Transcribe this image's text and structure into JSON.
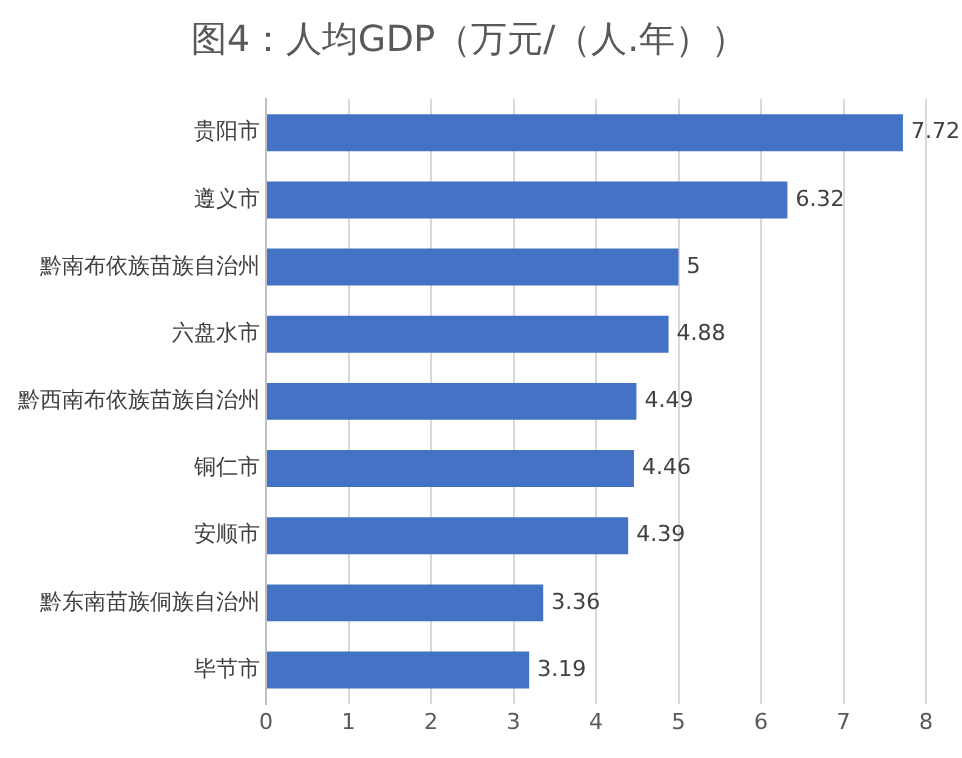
{
  "chart_data": {
    "type": "bar",
    "orientation": "horizontal",
    "title": "图4：人均GDP（万元/（人.年））",
    "categories": [
      "贵阳市",
      "遵义市",
      "黔南布依族苗族自治州",
      "六盘水市",
      "黔西南布依族苗族自治州",
      "铜仁市",
      "安顺市",
      "黔东南苗族侗族自治州",
      "毕节市"
    ],
    "values": [
      7.72,
      6.32,
      5,
      4.88,
      4.49,
      4.46,
      4.39,
      3.36,
      3.19
    ],
    "color": "#4472c4",
    "xlim": [
      0,
      8
    ],
    "xticks": [
      0,
      1,
      2,
      3,
      4,
      5,
      6,
      7,
      8
    ],
    "grid": "x",
    "data_labels": true,
    "legend": false
  }
}
